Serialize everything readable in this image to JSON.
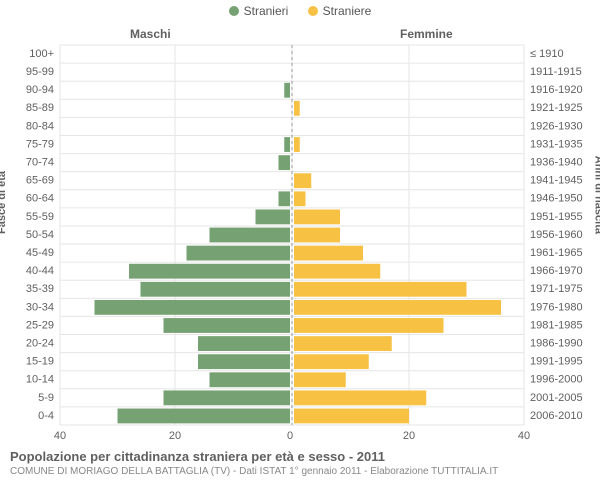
{
  "legend": {
    "male": {
      "label": "Stranieri",
      "color": "#76a172"
    },
    "female": {
      "label": "Straniere",
      "color": "#f7c244"
    }
  },
  "chart": {
    "type": "population_pyramid",
    "title_left": "Maschi",
    "title_right": "Femmine",
    "y_title_left": "Fasce di età",
    "y_title_right": "Anni di nascita",
    "x_ticks_male": [
      40,
      20,
      0
    ],
    "x_ticks_female": [
      0,
      20,
      40
    ],
    "x_max": 40,
    "bar_fill_opacity": 1,
    "grid_color": "#e6e6e6",
    "baseline_color": "#999999",
    "baseline_dash": "3 3",
    "label_fontsize": 11,
    "tick_fontsize": 11,
    "rows": [
      {
        "age": "100+",
        "birth": "≤ 1910",
        "m": 0,
        "f": 0
      },
      {
        "age": "95-99",
        "birth": "1911-1915",
        "m": 0,
        "f": 0
      },
      {
        "age": "90-94",
        "birth": "1916-1920",
        "m": 1,
        "f": 0
      },
      {
        "age": "85-89",
        "birth": "1921-1925",
        "m": 0,
        "f": 1
      },
      {
        "age": "80-84",
        "birth": "1926-1930",
        "m": 0,
        "f": 0
      },
      {
        "age": "75-79",
        "birth": "1931-1935",
        "m": 1,
        "f": 1
      },
      {
        "age": "70-74",
        "birth": "1936-1940",
        "m": 2,
        "f": 0
      },
      {
        "age": "65-69",
        "birth": "1941-1945",
        "m": 0,
        "f": 3
      },
      {
        "age": "60-64",
        "birth": "1946-1950",
        "m": 2,
        "f": 2
      },
      {
        "age": "55-59",
        "birth": "1951-1955",
        "m": 6,
        "f": 8
      },
      {
        "age": "50-54",
        "birth": "1956-1960",
        "m": 14,
        "f": 8
      },
      {
        "age": "45-49",
        "birth": "1961-1965",
        "m": 18,
        "f": 12
      },
      {
        "age": "40-44",
        "birth": "1966-1970",
        "m": 28,
        "f": 15
      },
      {
        "age": "35-39",
        "birth": "1971-1975",
        "m": 26,
        "f": 30
      },
      {
        "age": "30-34",
        "birth": "1976-1980",
        "m": 34,
        "f": 36
      },
      {
        "age": "25-29",
        "birth": "1981-1985",
        "m": 22,
        "f": 26
      },
      {
        "age": "20-24",
        "birth": "1986-1990",
        "m": 16,
        "f": 17
      },
      {
        "age": "15-19",
        "birth": "1991-1995",
        "m": 16,
        "f": 13
      },
      {
        "age": "10-14",
        "birth": "1996-2000",
        "m": 14,
        "f": 9
      },
      {
        "age": "5-9",
        "birth": "2001-2005",
        "m": 22,
        "f": 23
      },
      {
        "age": "0-4",
        "birth": "2006-2010",
        "m": 30,
        "f": 20
      }
    ]
  },
  "footer": {
    "title": "Popolazione per cittadinanza straniera per età e sesso - 2011",
    "subtitle": "COMUNE DI MORIAGO DELLA BATTAGLIA (TV) - Dati ISTAT 1° gennaio 2011 - Elaborazione TUTTITALIA.IT"
  }
}
